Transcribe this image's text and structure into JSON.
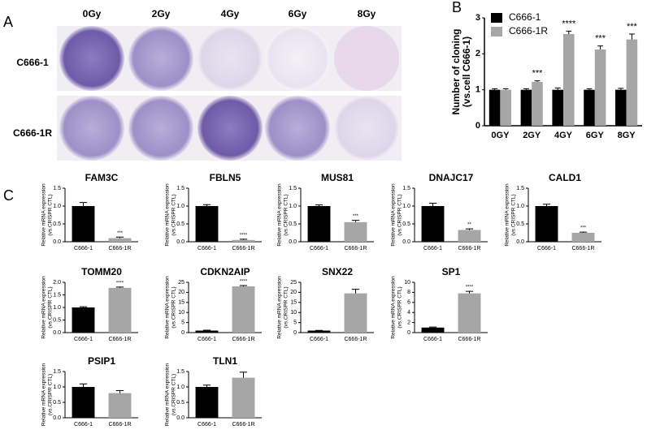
{
  "panel_labels": [
    "A",
    "B",
    "C"
  ],
  "photo_panel": {
    "columns": [
      "0Gy",
      "2Gy",
      "4Gy",
      "6Gy",
      "8Gy"
    ],
    "rows": [
      "C666-1",
      "C666-1R"
    ]
  },
  "chart_data": [
    {
      "type": "bar",
      "ylabel": [
        "Number of cloning",
        "(vs.cell C666-1)"
      ],
      "categories": [
        "0GY",
        "2GY",
        "4GY",
        "6GY",
        "8GY"
      ],
      "series": [
        {
          "name": "C666-1",
          "color": "#000000",
          "values": [
            1,
            1,
            1,
            1,
            1
          ],
          "errors": [
            0.03,
            0.03,
            0.05,
            0.03,
            0.04
          ]
        },
        {
          "name": "C666-1R",
          "color": "#a6a6a6",
          "values": [
            1,
            1.22,
            2.55,
            2.12,
            2.4
          ],
          "errors": [
            0.03,
            0.03,
            0.08,
            0.1,
            0.15
          ]
        }
      ],
      "annotations": [
        {
          "x": "2GY",
          "text": "***"
        },
        {
          "x": "4GY",
          "text": "****"
        },
        {
          "x": "6GY",
          "text": "***"
        },
        {
          "x": "8GY",
          "text": "***"
        }
      ],
      "ylim": [
        0,
        3
      ],
      "yticks": [
        0,
        1,
        2,
        3
      ],
      "legend": "upper left"
    },
    {
      "type": "bar",
      "title": "FAM3C",
      "ylabel": [
        "Relative mRNA expression",
        "(vs.CRISPR CTL)"
      ],
      "categories": [
        "C666-1",
        "C666-1R"
      ],
      "colors": [
        "#000000",
        "#a6a6a6"
      ],
      "values": [
        1,
        0.1
      ],
      "errors": [
        0.1,
        0.03
      ],
      "annotation": {
        "x": "C666-1R",
        "text": "***"
      },
      "ylim": [
        0,
        1.5
      ],
      "yticks": [
        {
          "value": 0,
          "label": "0.0"
        },
        0.5,
        {
          "value": 1,
          "label": "1.0"
        },
        1.5
      ]
    },
    {
      "type": "bar",
      "title": "FBLN5",
      "ylabel": [
        "Relative mRNA expression",
        "(vs.CRISPR CTL)"
      ],
      "categories": [
        "C666-1",
        "C666-1R"
      ],
      "colors": [
        "#000000",
        "#a6a6a6"
      ],
      "values": [
        1,
        0.05
      ],
      "errors": [
        0.04,
        0.02
      ],
      "annotation": {
        "x": "C666-1R",
        "text": "****"
      },
      "ylim": [
        0,
        1.5
      ],
      "yticks": [
        {
          "value": 0,
          "label": "0.0"
        },
        0.5,
        {
          "value": 1,
          "label": "1.0"
        },
        1.5
      ]
    },
    {
      "type": "bar",
      "title": "MUS81",
      "ylabel": [
        "Relative mRNA expression",
        "(vs.CRISPR CTL)"
      ],
      "categories": [
        "C666-1",
        "C666-1R"
      ],
      "colors": [
        "#000000",
        "#a6a6a6"
      ],
      "values": [
        1,
        0.55
      ],
      "errors": [
        0.03,
        0.05
      ],
      "annotation": {
        "x": "C666-1R",
        "text": "***"
      },
      "ylim": [
        0,
        1.5
      ],
      "yticks": [
        {
          "value": 0,
          "label": "0.0"
        },
        0.5,
        {
          "value": 1,
          "label": "1.0"
        },
        1.5
      ]
    },
    {
      "type": "bar",
      "title": "DNAJC17",
      "ylabel": [
        "Relative mRNA expression",
        "(vs.CRISPR CTL)"
      ],
      "categories": [
        "C666-1",
        "C666-1R"
      ],
      "colors": [
        "#000000",
        "#a6a6a6"
      ],
      "values": [
        1,
        0.33
      ],
      "errors": [
        0.08,
        0.03
      ],
      "annotation": {
        "x": "C666-1R",
        "text": "**"
      },
      "ylim": [
        0,
        1.5
      ],
      "yticks": [
        {
          "value": 0,
          "label": "0.0"
        },
        0.5,
        {
          "value": 1,
          "label": "1.0"
        },
        1.5
      ]
    },
    {
      "type": "bar",
      "title": "CALD1",
      "ylabel": [
        "Relative mRNA expression",
        "(vs.CRISPR CTL)"
      ],
      "categories": [
        "C666-1",
        "C666-1R"
      ],
      "colors": [
        "#000000",
        "#a6a6a6"
      ],
      "values": [
        1,
        0.25
      ],
      "errors": [
        0.05,
        0.02
      ],
      "annotation": {
        "x": "C666-1R",
        "text": "***"
      },
      "ylim": [
        0,
        1.5
      ],
      "yticks": [
        {
          "value": 0,
          "label": "0.0"
        },
        0.5,
        {
          "value": 1,
          "label": "1.0"
        },
        1.5
      ]
    },
    {
      "type": "bar",
      "title": "TOMM20",
      "ylabel": [
        "Relative mRNA expression",
        "(vs.CRISPR CTL)"
      ],
      "categories": [
        "C666-1",
        "C666-1R"
      ],
      "colors": [
        "#000000",
        "#a6a6a6"
      ],
      "values": [
        1,
        1.78
      ],
      "errors": [
        0.03,
        0.03
      ],
      "annotation": {
        "x": "C666-1R",
        "text": "****"
      },
      "ylim": [
        0,
        2
      ],
      "yticks": [
        {
          "value": 0,
          "label": "0.0"
        },
        0.5,
        {
          "value": 1,
          "label": "1.0"
        },
        1.5,
        {
          "value": 2,
          "label": "2.0"
        }
      ]
    },
    {
      "type": "bar",
      "title": "CDKN2AIP",
      "ylabel": [
        "Relative mRNA expression",
        "(vs.CRISPR CTL)"
      ],
      "categories": [
        "C666-1",
        "C666-1R"
      ],
      "colors": [
        "#000000",
        "#a6a6a6"
      ],
      "values": [
        1,
        23
      ],
      "errors": [
        0.2,
        0.4
      ],
      "annotation": {
        "x": "C666-1R",
        "text": "****"
      },
      "ylim": [
        0,
        25
      ],
      "yticks": [
        0,
        5,
        10,
        15,
        20,
        25
      ]
    },
    {
      "type": "bar",
      "title": "SNX22",
      "ylabel": [
        "Relative mRNA expression",
        "(vs.CRISPR CTL)"
      ],
      "categories": [
        "C666-1",
        "C666-1R"
      ],
      "colors": [
        "#000000",
        "#a6a6a6"
      ],
      "values": [
        1,
        19.5
      ],
      "errors": [
        0.1,
        2
      ],
      "ylim": [
        0,
        25
      ],
      "yticks": [
        0,
        5,
        10,
        15,
        20,
        25
      ]
    },
    {
      "type": "bar",
      "title": "SP1",
      "ylabel": [
        "Relative mRNA expression",
        "(vs.CRISPR CTL)"
      ],
      "categories": [
        "C666-1",
        "C666-1R"
      ],
      "colors": [
        "#000000",
        "#a6a6a6"
      ],
      "values": [
        1,
        7.8
      ],
      "errors": [
        0.1,
        0.4
      ],
      "annotation": {
        "x": "C666-1R",
        "text": "****"
      },
      "ylim": [
        0,
        10
      ],
      "yticks": [
        0,
        2,
        4,
        6,
        8,
        10
      ]
    },
    {
      "type": "bar",
      "title": "PSIP1",
      "ylabel": [
        "Relative mRNA expression",
        "(vs.CRISPR CTL)"
      ],
      "categories": [
        "C666-1",
        "C666-1R"
      ],
      "colors": [
        "#000000",
        "#a6a6a6"
      ],
      "values": [
        1,
        0.8
      ],
      "errors": [
        0.1,
        0.08
      ],
      "ylim": [
        0,
        1.5
      ],
      "yticks": [
        {
          "value": 0,
          "label": "0.0"
        },
        0.5,
        {
          "value": 1,
          "label": "1.0"
        },
        1.5
      ]
    },
    {
      "type": "bar",
      "title": "TLN1",
      "ylabel": [
        "Relative mRNA expression",
        "(vs.CRISPR CTL)"
      ],
      "categories": [
        "C666-1",
        "C666-1R"
      ],
      "colors": [
        "#000000",
        "#a6a6a6"
      ],
      "values": [
        1,
        1.3
      ],
      "errors": [
        0.06,
        0.18
      ],
      "ylim": [
        0,
        1.5
      ],
      "yticks": [
        {
          "value": 0,
          "label": "0.0"
        },
        0.5,
        {
          "value": 1,
          "label": "1.0"
        },
        1.5
      ]
    }
  ]
}
